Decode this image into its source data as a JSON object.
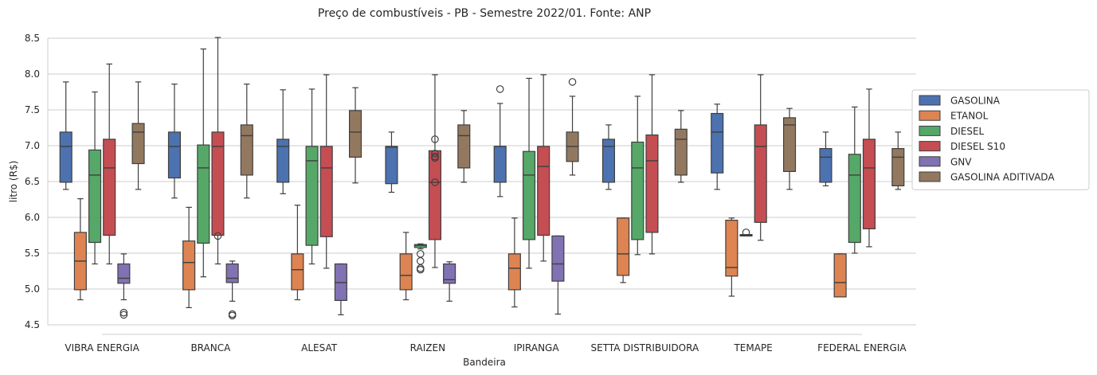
{
  "chart_data": {
    "type": "box",
    "title": "Preço de combustíveis - PB - Semestre 2022/01. Fonte: ANP",
    "xlabel": "Bandeira",
    "ylabel": "litro (R$)",
    "ylim": [
      4.5,
      8.5
    ],
    "yticks": [
      "4.5",
      "5.0",
      "5.5",
      "6.0",
      "6.5",
      "7.0",
      "7.5",
      "8.0",
      "8.5"
    ],
    "grid": "horizontal",
    "legend_position": "right",
    "categories": [
      "VIBRA ENERGIA",
      "BRANCA",
      "ALESAT",
      "RAIZEN",
      "IPIRANGA",
      "SETTA DISTRIBUIDORA",
      "TEMAPE",
      "FEDERAL ENERGIA"
    ],
    "series": [
      {
        "name": "GASOLINA",
        "color": "#4c72b0",
        "boxes": [
          {
            "min": 6.39,
            "q1": 6.49,
            "median": 6.99,
            "q3": 7.19,
            "max": 7.89,
            "outliers": []
          },
          {
            "min": 6.27,
            "q1": 6.55,
            "median": 6.99,
            "q3": 7.19,
            "max": 7.86,
            "outliers": []
          },
          {
            "min": 6.33,
            "q1": 6.49,
            "median": 6.99,
            "q3": 7.09,
            "max": 7.78,
            "outliers": []
          },
          {
            "min": 6.35,
            "q1": 6.47,
            "median": 6.98,
            "q3": 6.99,
            "max": 7.19,
            "outliers": []
          },
          {
            "min": 6.29,
            "q1": 6.49,
            "median": 6.99,
            "q3": 6.99,
            "max": 7.59,
            "outliers": [
              7.79
            ]
          },
          {
            "min": 6.39,
            "q1": 6.49,
            "median": 6.99,
            "q3": 7.09,
            "max": 7.29,
            "outliers": []
          },
          {
            "min": 6.39,
            "q1": 6.62,
            "median": 7.19,
            "q3": 7.45,
            "max": 7.58,
            "outliers": []
          },
          {
            "min": 6.44,
            "q1": 6.49,
            "median": 6.84,
            "q3": 6.96,
            "max": 7.19,
            "outliers": []
          }
        ]
      },
      {
        "name": "ETANOL",
        "color": "#dd8452",
        "boxes": [
          {
            "min": 4.85,
            "q1": 4.99,
            "median": 5.39,
            "q3": 5.79,
            "max": 6.26,
            "outliers": []
          },
          {
            "min": 4.74,
            "q1": 4.99,
            "median": 5.37,
            "q3": 5.67,
            "max": 6.14,
            "outliers": []
          },
          {
            "min": 4.85,
            "q1": 4.99,
            "median": 5.27,
            "q3": 5.49,
            "max": 6.17,
            "outliers": []
          },
          {
            "min": 4.85,
            "q1": 4.99,
            "median": 5.19,
            "q3": 5.49,
            "max": 5.79,
            "outliers": []
          },
          {
            "min": 4.75,
            "q1": 4.99,
            "median": 5.29,
            "q3": 5.49,
            "max": 5.99,
            "outliers": []
          },
          {
            "min": 5.09,
            "q1": 5.19,
            "median": 5.49,
            "q3": 5.99,
            "max": 5.99,
            "outliers": []
          },
          {
            "min": 4.9,
            "q1": 5.18,
            "median": 5.3,
            "q3": 5.96,
            "max": 5.99,
            "outliers": []
          },
          {
            "min": 4.89,
            "q1": 4.89,
            "median": 5.09,
            "q3": 5.49,
            "max": 5.49,
            "outliers": []
          }
        ]
      },
      {
        "name": "DIESEL",
        "color": "#55a868",
        "boxes": [
          {
            "min": 5.35,
            "q1": 5.65,
            "median": 6.59,
            "q3": 6.94,
            "max": 7.75,
            "outliers": []
          },
          {
            "min": 5.17,
            "q1": 5.64,
            "median": 6.69,
            "q3": 7.01,
            "max": 8.35,
            "outliers": []
          },
          {
            "min": 5.35,
            "q1": 5.61,
            "median": 6.79,
            "q3": 6.99,
            "max": 7.79,
            "outliers": []
          },
          {
            "min": 5.56,
            "q1": 5.58,
            "median": 5.61,
            "q3": 5.62,
            "max": 5.63,
            "outliers": [
              5.49,
              5.39,
              5.29,
              5.27
            ]
          },
          {
            "min": 5.29,
            "q1": 5.69,
            "median": 6.59,
            "q3": 6.92,
            "max": 7.94,
            "outliers": []
          },
          {
            "min": 5.48,
            "q1": 5.69,
            "median": 6.69,
            "q3": 7.05,
            "max": 7.69,
            "outliers": []
          },
          {
            "min": 5.74,
            "q1": 5.74,
            "median": 5.75,
            "q3": 5.76,
            "max": 5.76,
            "outliers": [
              5.79
            ]
          },
          {
            "min": 5.5,
            "q1": 5.65,
            "median": 6.59,
            "q3": 6.88,
            "max": 7.54,
            "outliers": []
          }
        ]
      },
      {
        "name": "DIESEL S10",
        "color": "#c44e52",
        "boxes": [
          {
            "min": 5.35,
            "q1": 5.75,
            "median": 6.69,
            "q3": 7.09,
            "max": 8.14,
            "outliers": []
          },
          {
            "min": 5.35,
            "q1": 5.75,
            "median": 6.99,
            "q3": 7.19,
            "max": 8.51,
            "outliers": [
              5.74
            ]
          },
          {
            "min": 5.29,
            "q1": 5.73,
            "median": 6.69,
            "q3": 6.99,
            "max": 7.99,
            "outliers": []
          },
          {
            "min": 5.3,
            "q1": 5.69,
            "median": 6.49,
            "q3": 6.93,
            "max": 7.99,
            "outliers": [
              7.09,
              6.89,
              6.85,
              6.83,
              6.49
            ]
          },
          {
            "min": 5.39,
            "q1": 5.75,
            "median": 6.71,
            "q3": 6.99,
            "max": 7.99,
            "outliers": []
          },
          {
            "min": 5.49,
            "q1": 5.79,
            "median": 6.79,
            "q3": 7.15,
            "max": 7.99,
            "outliers": []
          },
          {
            "min": 5.68,
            "q1": 5.93,
            "median": 6.99,
            "q3": 7.29,
            "max": 7.99,
            "outliers": []
          },
          {
            "min": 5.59,
            "q1": 5.84,
            "median": 6.69,
            "q3": 7.09,
            "max": 7.79,
            "outliers": []
          }
        ]
      },
      {
        "name": "GNV",
        "color": "#8172b3",
        "boxes": [
          {
            "min": 4.85,
            "q1": 5.08,
            "median": 5.15,
            "q3": 5.35,
            "max": 5.49,
            "outliers": [
              4.67,
              4.64
            ]
          },
          {
            "min": 4.83,
            "q1": 5.09,
            "median": 5.15,
            "q3": 5.35,
            "max": 5.39,
            "outliers": [
              4.65,
              4.63
            ]
          },
          {
            "min": 4.64,
            "q1": 4.84,
            "median": 5.09,
            "q3": 5.35,
            "max": 5.35,
            "outliers": []
          },
          {
            "min": 4.83,
            "q1": 5.08,
            "median": 5.13,
            "q3": 5.35,
            "max": 5.38,
            "outliers": []
          },
          {
            "min": 4.65,
            "q1": 5.11,
            "median": 5.35,
            "q3": 5.74,
            "max": 5.74,
            "outliers": []
          },
          null,
          null,
          null
        ]
      },
      {
        "name": "GASOLINA ADITIVADA",
        "color": "#937860",
        "boxes": [
          {
            "min": 6.39,
            "q1": 6.75,
            "median": 7.19,
            "q3": 7.31,
            "max": 7.89,
            "outliers": []
          },
          {
            "min": 6.27,
            "q1": 6.59,
            "median": 7.14,
            "q3": 7.29,
            "max": 7.86,
            "outliers": []
          },
          {
            "min": 6.48,
            "q1": 6.84,
            "median": 7.19,
            "q3": 7.49,
            "max": 7.81,
            "outliers": []
          },
          {
            "min": 6.49,
            "q1": 6.69,
            "median": 7.14,
            "q3": 7.29,
            "max": 7.49,
            "outliers": []
          },
          {
            "min": 6.59,
            "q1": 6.78,
            "median": 6.99,
            "q3": 7.19,
            "max": 7.69,
            "outliers": [
              7.89
            ]
          },
          {
            "min": 6.49,
            "q1": 6.59,
            "median": 7.09,
            "q3": 7.23,
            "max": 7.49,
            "outliers": []
          },
          {
            "min": 6.39,
            "q1": 6.64,
            "median": 7.29,
            "q3": 7.39,
            "max": 7.52,
            "outliers": []
          },
          {
            "min": 6.39,
            "q1": 6.44,
            "median": 6.84,
            "q3": 6.96,
            "max": 7.19,
            "outliers": []
          }
        ]
      }
    ]
  }
}
